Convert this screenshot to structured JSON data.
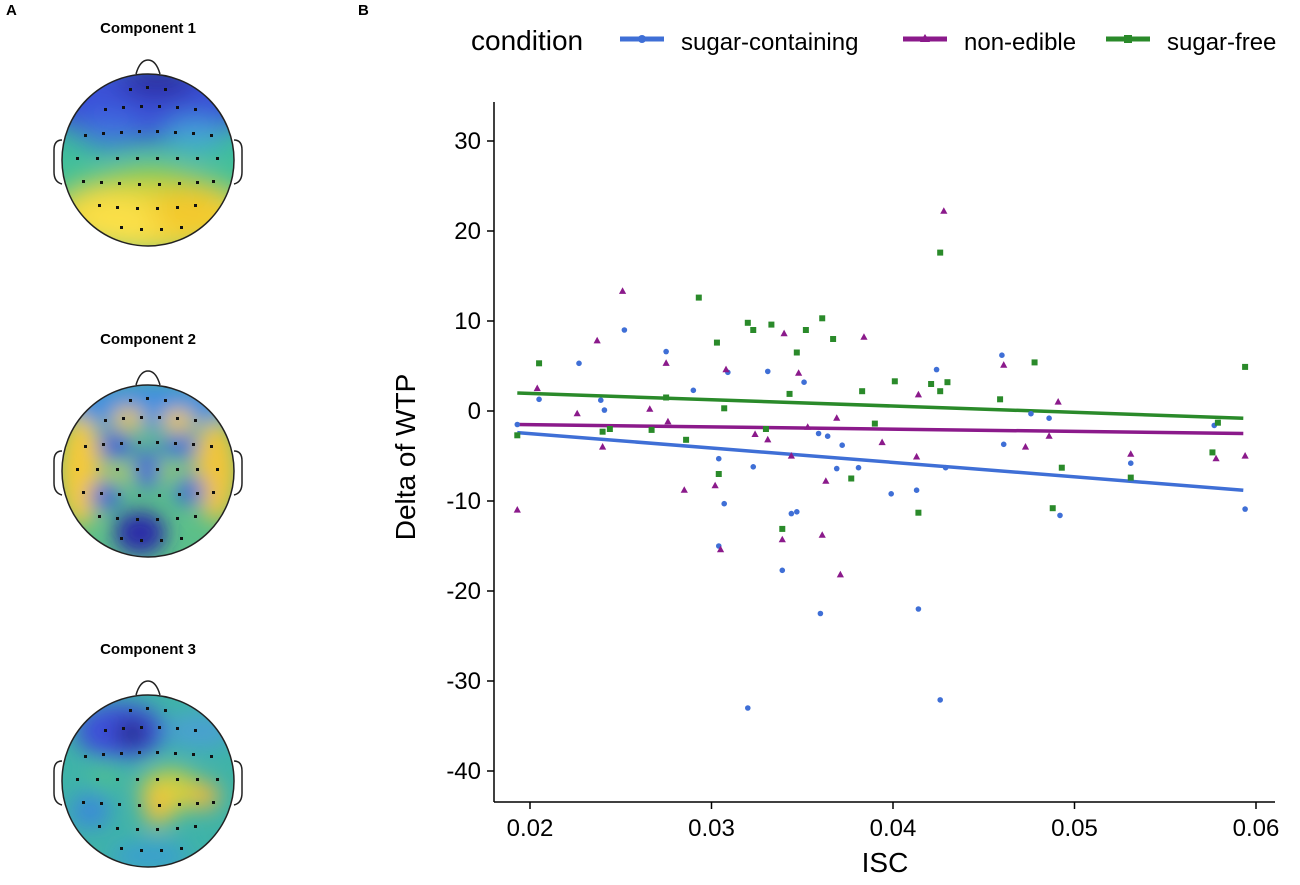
{
  "panels": {
    "a_label": "A",
    "b_label": "B"
  },
  "topomaps": [
    {
      "title": "Component 1"
    },
    {
      "title": "Component 2"
    },
    {
      "title": "Component 3"
    }
  ],
  "colors": {
    "sugar_containing": "#3f6fd6",
    "non_edible": "#8b1a8b",
    "sugar_free": "#2a8a2a"
  },
  "chart_data": {
    "type": "scatter",
    "xlabel": "ISC",
    "ylabel": "Delta of WTP",
    "xlim": [
      0.0175,
      0.0615
    ],
    "ylim": [
      -43,
      34
    ],
    "xticks": [
      0.02,
      0.03,
      0.04,
      0.05,
      0.06
    ],
    "xtick_labels": [
      "0.02",
      "0.03",
      "0.04",
      "0.05",
      "0.06"
    ],
    "yticks": [
      -40,
      -30,
      -20,
      -10,
      0,
      10,
      20,
      30
    ],
    "ytick_labels": [
      "-40",
      "-30",
      "-20",
      "-10",
      "0",
      "10",
      "20",
      "30"
    ],
    "legend": {
      "title": "condition",
      "position": "top",
      "entries": [
        "sugar-containing",
        "non-edible",
        "sugar-free"
      ]
    },
    "series": [
      {
        "name": "sugar-containing",
        "marker": "circle",
        "fit": {
          "x": [
            0.0193,
            0.0593
          ],
          "y": [
            -2.4,
            -8.8
          ]
        },
        "points": [
          [
            0.0193,
            -1.5
          ],
          [
            0.0205,
            1.3
          ],
          [
            0.0227,
            5.3
          ],
          [
            0.0239,
            1.2
          ],
          [
            0.0241,
            0.1
          ],
          [
            0.0252,
            9.0
          ],
          [
            0.0275,
            6.6
          ],
          [
            0.029,
            2.3
          ],
          [
            0.0304,
            -5.3
          ],
          [
            0.0304,
            -15.0
          ],
          [
            0.0307,
            -10.3
          ],
          [
            0.0309,
            4.3
          ],
          [
            0.0323,
            -6.2
          ],
          [
            0.0331,
            4.4
          ],
          [
            0.0339,
            -17.7
          ],
          [
            0.0344,
            -11.4
          ],
          [
            0.0347,
            -11.2
          ],
          [
            0.0351,
            3.2
          ],
          [
            0.0359,
            -2.5
          ],
          [
            0.036,
            -22.5
          ],
          [
            0.0364,
            -2.8
          ],
          [
            0.0369,
            -6.4
          ],
          [
            0.0372,
            -3.8
          ],
          [
            0.0381,
            -6.3
          ],
          [
            0.0399,
            -9.2
          ],
          [
            0.0413,
            -8.8
          ],
          [
            0.0414,
            -22.0
          ],
          [
            0.0424,
            4.6
          ],
          [
            0.0426,
            -32.1
          ],
          [
            0.032,
            -33.0
          ],
          [
            0.0429,
            -6.3
          ],
          [
            0.046,
            6.2
          ],
          [
            0.0461,
            -3.7
          ],
          [
            0.0476,
            -0.3
          ],
          [
            0.0486,
            -0.8
          ],
          [
            0.0492,
            -11.6
          ],
          [
            0.0531,
            -5.8
          ],
          [
            0.0577,
            -1.6
          ],
          [
            0.0594,
            -10.9
          ]
        ]
      },
      {
        "name": "non-edible",
        "marker": "triangle",
        "fit": {
          "x": [
            0.0193,
            0.0593
          ],
          "y": [
            -1.5,
            -2.5
          ]
        },
        "points": [
          [
            0.0193,
            -11.0
          ],
          [
            0.0204,
            2.5
          ],
          [
            0.0226,
            -0.3
          ],
          [
            0.0237,
            7.8
          ],
          [
            0.024,
            -4.0
          ],
          [
            0.0251,
            13.3
          ],
          [
            0.0266,
            0.2
          ],
          [
            0.0275,
            5.3
          ],
          [
            0.0276,
            -1.2
          ],
          [
            0.0285,
            -8.8
          ],
          [
            0.0302,
            -8.3
          ],
          [
            0.0305,
            -15.4
          ],
          [
            0.0308,
            4.6
          ],
          [
            0.0324,
            -2.6
          ],
          [
            0.0331,
            -3.2
          ],
          [
            0.0339,
            -14.3
          ],
          [
            0.034,
            8.6
          ],
          [
            0.0344,
            -5.0
          ],
          [
            0.0348,
            4.2
          ],
          [
            0.0353,
            -1.8
          ],
          [
            0.0361,
            -13.8
          ],
          [
            0.0363,
            -7.8
          ],
          [
            0.0369,
            -0.8
          ],
          [
            0.0371,
            -18.2
          ],
          [
            0.0384,
            8.2
          ],
          [
            0.0394,
            -3.5
          ],
          [
            0.0413,
            -5.1
          ],
          [
            0.0414,
            1.8
          ],
          [
            0.0428,
            22.2
          ],
          [
            0.0461,
            5.1
          ],
          [
            0.0473,
            -4.0
          ],
          [
            0.0486,
            -2.8
          ],
          [
            0.0491,
            1.0
          ],
          [
            0.0531,
            -4.8
          ],
          [
            0.0578,
            -5.3
          ],
          [
            0.0594,
            -5.0
          ]
        ]
      },
      {
        "name": "sugar-free",
        "marker": "square",
        "fit": {
          "x": [
            0.0193,
            0.0593
          ],
          "y": [
            2.0,
            -0.8
          ]
        },
        "points": [
          [
            0.0193,
            -2.7
          ],
          [
            0.0205,
            5.3
          ],
          [
            0.024,
            -2.3
          ],
          [
            0.0244,
            -2.0
          ],
          [
            0.0267,
            -2.1
          ],
          [
            0.0275,
            1.5
          ],
          [
            0.0286,
            -3.2
          ],
          [
            0.0293,
            12.6
          ],
          [
            0.0303,
            7.6
          ],
          [
            0.0304,
            -7.0
          ],
          [
            0.0307,
            0.3
          ],
          [
            0.032,
            9.8
          ],
          [
            0.0323,
            9.0
          ],
          [
            0.033,
            -2.0
          ],
          [
            0.0333,
            9.6
          ],
          [
            0.0339,
            -13.1
          ],
          [
            0.0343,
            1.9
          ],
          [
            0.0347,
            6.5
          ],
          [
            0.0352,
            9.0
          ],
          [
            0.0361,
            10.3
          ],
          [
            0.0367,
            8.0
          ],
          [
            0.0377,
            -7.5
          ],
          [
            0.0383,
            2.2
          ],
          [
            0.039,
            -1.4
          ],
          [
            0.0401,
            3.3
          ],
          [
            0.0414,
            -11.3
          ],
          [
            0.0421,
            3.0
          ],
          [
            0.0426,
            17.6
          ],
          [
            0.0426,
            2.2
          ],
          [
            0.043,
            3.2
          ],
          [
            0.0459,
            1.3
          ],
          [
            0.0478,
            5.4
          ],
          [
            0.0488,
            -10.8
          ],
          [
            0.0493,
            -6.3
          ],
          [
            0.0531,
            -7.4
          ],
          [
            0.0576,
            -4.6
          ],
          [
            0.0579,
            -1.3
          ],
          [
            0.0594,
            4.9
          ]
        ]
      }
    ]
  }
}
